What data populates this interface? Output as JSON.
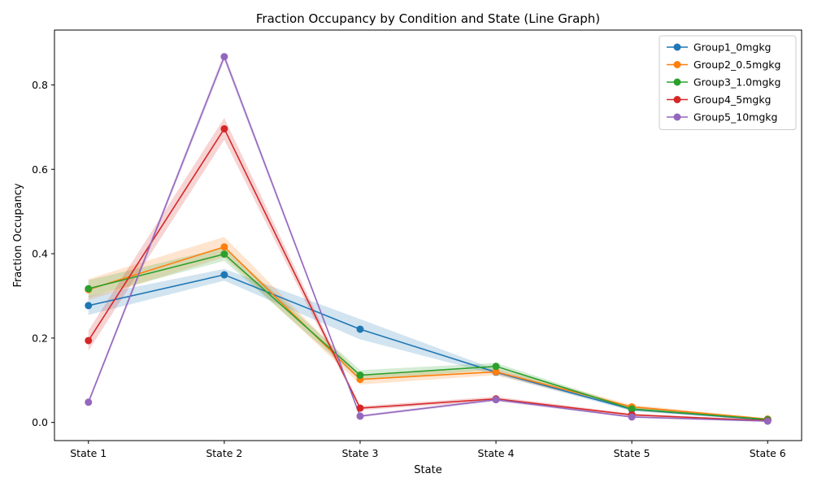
{
  "chart_data": {
    "type": "line",
    "title": "Fraction Occupancy by Condition and State (Line Graph)",
    "xlabel": "State",
    "ylabel": "Fraction Occupancy",
    "categories": [
      "State 1",
      "State 2",
      "State 3",
      "State 4",
      "State 5",
      "State 6"
    ],
    "ylim": [
      -0.043,
      0.93
    ],
    "yticks": [
      0.0,
      0.2,
      0.4,
      0.6,
      0.8
    ],
    "ytick_labels": [
      "0.0",
      "0.2",
      "0.4",
      "0.6",
      "0.8"
    ],
    "grid": false,
    "legend_position": "top-right",
    "series": [
      {
        "name": "Group1_0mgkg",
        "color": "#1f77b4",
        "values": [
          0.277,
          0.35,
          0.221,
          0.119,
          0.031,
          0.006
        ],
        "lower": [
          0.255,
          0.336,
          0.197,
          0.113,
          0.027,
          0.004
        ],
        "upper": [
          0.299,
          0.364,
          0.245,
          0.125,
          0.035,
          0.008
        ]
      },
      {
        "name": "Group2_0.5mgkg",
        "color": "#ff7f0e",
        "values": [
          0.315,
          0.416,
          0.102,
          0.12,
          0.037,
          0.008
        ],
        "lower": [
          0.29,
          0.392,
          0.09,
          0.112,
          0.032,
          0.006
        ],
        "upper": [
          0.34,
          0.44,
          0.114,
          0.128,
          0.042,
          0.01
        ]
      },
      {
        "name": "Group3_1.0mgkg",
        "color": "#2ca02c",
        "values": [
          0.317,
          0.399,
          0.112,
          0.133,
          0.032,
          0.007
        ],
        "lower": [
          0.297,
          0.383,
          0.1,
          0.125,
          0.028,
          0.005
        ],
        "upper": [
          0.337,
          0.415,
          0.124,
          0.141,
          0.036,
          0.009
        ]
      },
      {
        "name": "Group4_5mgkg",
        "color": "#d62728",
        "values": [
          0.194,
          0.696,
          0.034,
          0.056,
          0.018,
          0.004
        ],
        "lower": [
          0.17,
          0.67,
          0.029,
          0.051,
          0.015,
          0.002
        ],
        "upper": [
          0.218,
          0.722,
          0.039,
          0.061,
          0.021,
          0.006
        ]
      },
      {
        "name": "Group5_10mgkg",
        "color": "#9467bd",
        "values": [
          0.048,
          0.867,
          0.015,
          0.054,
          0.013,
          0.003
        ],
        "lower": [
          0.042,
          0.857,
          0.012,
          0.05,
          0.011,
          0.002
        ],
        "upper": [
          0.054,
          0.877,
          0.018,
          0.058,
          0.015,
          0.004
        ]
      }
    ]
  }
}
